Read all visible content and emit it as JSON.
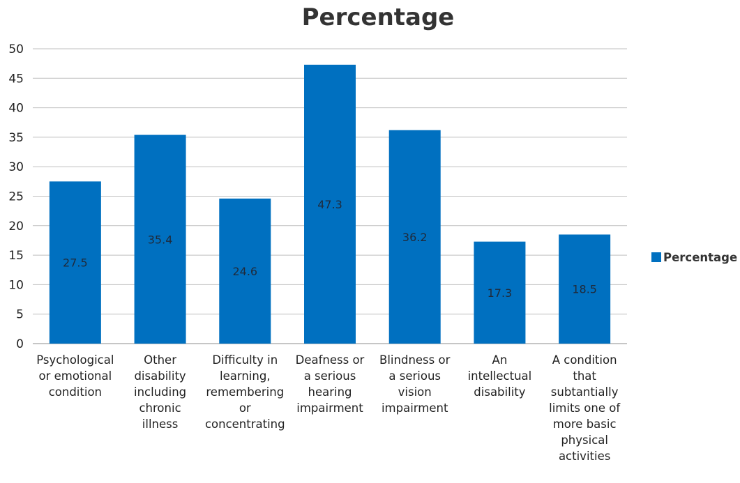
{
  "chart_data": {
    "type": "bar",
    "title": "Percentage",
    "categories": [
      [
        "Psychological",
        "or emotional",
        "condition"
      ],
      [
        "Other",
        "disability",
        "including",
        "chronic",
        "illness"
      ],
      [
        "Difficulty in",
        "learning,",
        "remembering",
        "or",
        "concentrating"
      ],
      [
        "Deafness or",
        "a serious",
        "hearing",
        "impairment"
      ],
      [
        "Blindness or",
        "a serious",
        "vision",
        "impairment"
      ],
      [
        "An",
        "intellectual",
        "disability"
      ],
      [
        "A condition",
        "that",
        "subtantially",
        "limits one of",
        "more basic",
        "physical",
        "activities"
      ]
    ],
    "series": [
      {
        "name": "Percentage",
        "values": [
          27.5,
          35.4,
          24.6,
          47.3,
          36.2,
          17.3,
          18.5
        ],
        "labels": [
          "27.5",
          "35.4",
          "24.6",
          "47.3",
          "36.2",
          "17.3",
          "18.5"
        ]
      }
    ],
    "ylim": [
      0,
      50
    ],
    "yticks": [
      "0",
      "5",
      "10",
      "15",
      "20",
      "25",
      "30",
      "35",
      "40",
      "45",
      "50"
    ],
    "grid": true,
    "legend": "right",
    "bar_color": "#0070c0"
  }
}
